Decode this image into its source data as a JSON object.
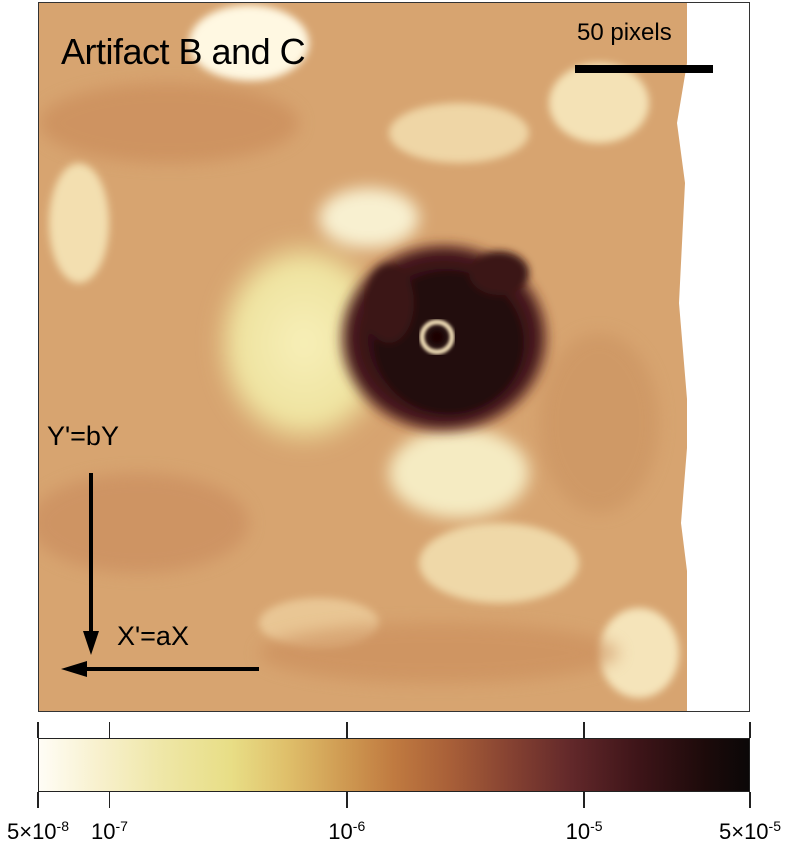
{
  "figure": {
    "title": "Artifact B and C",
    "scale_bar_label": "50 pixels",
    "y_axis_label": "Y'=bY",
    "x_axis_label": "X'=aX"
  },
  "colorbar": {
    "scale": "log",
    "range": [
      5e-08,
      5e-05
    ],
    "colors": [
      "#fffdf6",
      "#efe7a8",
      "#dfbf6a",
      "#c07a40",
      "#874332",
      "#3f1519",
      "#0b0808"
    ],
    "ticks": [
      {
        "value": 5e-08,
        "mantissa": "5×10",
        "exponent": "-8"
      },
      {
        "value": 1e-07,
        "mantissa": "10",
        "exponent": "-7"
      },
      {
        "value": 1e-06,
        "mantissa": "10",
        "exponent": "-6"
      },
      {
        "value": 1e-05,
        "mantissa": "10",
        "exponent": "-5"
      },
      {
        "value": 5e-05,
        "mantissa": "5×10",
        "exponent": "-5"
      }
    ]
  }
}
